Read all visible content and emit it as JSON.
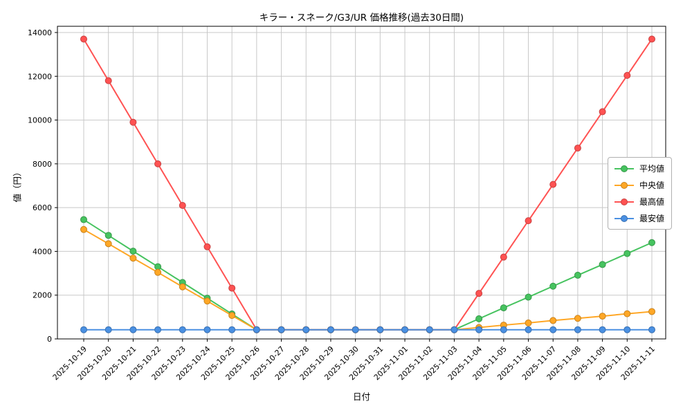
{
  "chart_data": {
    "type": "line",
    "title": "キラー・スネーク/G3/UR 価格推移(過去30日間)",
    "xlabel": "日付",
    "ylabel": "値（円）",
    "ylim": [
      0,
      14000
    ],
    "yticks": [
      0,
      2000,
      4000,
      6000,
      8000,
      10000,
      12000,
      14000
    ],
    "grid": true,
    "legend_position": "center right",
    "marker": "circle",
    "categories": [
      "2025-10-19",
      "2025-10-20",
      "2025-10-21",
      "2025-10-22",
      "2025-10-23",
      "2025-10-24",
      "2025-10-25",
      "2025-10-26",
      "2025-10-27",
      "2025-10-28",
      "2025-10-29",
      "2025-10-30",
      "2025-10-31",
      "2025-11-01",
      "2025-11-02",
      "2025-11-03",
      "2025-11-04",
      "2025-11-05",
      "2025-11-06",
      "2025-11-07",
      "2025-11-08",
      "2025-11-09",
      "2025-11-10",
      "2025-11-11"
    ],
    "series": [
      {
        "name": "平均値",
        "color": "#46c35f",
        "values": [
          5450,
          4730,
          4010,
          3300,
          2580,
          1860,
          1140,
          420,
          420,
          420,
          420,
          420,
          420,
          420,
          420,
          420,
          920,
          1420,
          1910,
          2410,
          2910,
          3400,
          3900,
          4400
        ]
      },
      {
        "name": "中央値",
        "color": "#ffa726",
        "values": [
          5000,
          4350,
          3690,
          3040,
          2380,
          1730,
          1070,
          420,
          420,
          420,
          420,
          420,
          420,
          420,
          420,
          420,
          520,
          630,
          730,
          840,
          940,
          1040,
          1150,
          1250
        ]
      },
      {
        "name": "最高値",
        "color": "#ff5252",
        "values": [
          13700,
          11800,
          9900,
          8000,
          6100,
          4210,
          2320,
          420,
          420,
          420,
          420,
          420,
          420,
          420,
          420,
          420,
          2080,
          3740,
          5400,
          7060,
          8720,
          10380,
          12040,
          13700
        ]
      },
      {
        "name": "最安値",
        "color": "#4a90e2",
        "values": [
          420,
          420,
          420,
          420,
          420,
          420,
          420,
          420,
          420,
          420,
          420,
          420,
          420,
          420,
          420,
          420,
          420,
          420,
          420,
          420,
          420,
          420,
          420,
          420
        ]
      }
    ]
  }
}
